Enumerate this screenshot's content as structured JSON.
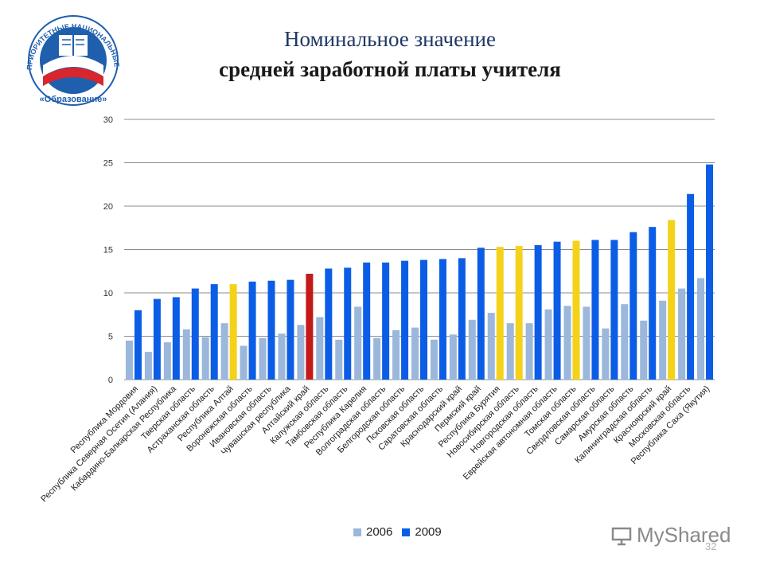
{
  "header": {
    "title_line1": "Номинальное значение",
    "title_line2": "средней заработной платы учителя"
  },
  "logo": {
    "ring_text": "ПРИОРИТЕТНЫЕ НАЦИОНАЛЬНЫЕ ПРОЕКТЫ",
    "bottom_text": "«Образование»",
    "colors": {
      "ring": "#1f5fae",
      "red": "#d8262c",
      "white": "#ffffff"
    }
  },
  "colors": {
    "series_2006": "#9bb7db",
    "series_2009": "#0b5de6",
    "highlight_yellow": "#f5d21a",
    "highlight_red": "#c41a1a"
  },
  "chart_data": {
    "type": "bar",
    "title": "Номинальное значение средней заработной платы учителя",
    "xlabel": "",
    "ylabel": "",
    "ylim": [
      0,
      30
    ],
    "yticks": [
      0,
      5,
      10,
      15,
      20,
      25,
      30
    ],
    "grid": true,
    "legend_position": "bottom",
    "categories": [
      "Республика Мордовия",
      "Республика Северная Осетия (Алания)",
      "Кабардино-Балкарская Республика",
      "Тверская область",
      "Астраханская область",
      "Республика Алтай",
      "Воронежская область",
      "Ивановская область",
      "Чувашская республика",
      "Алтайский край",
      "Калужская область",
      "Тамбовская область",
      "Республика Карелия",
      "Волгоградская область",
      "Белгородская область",
      "Псковская область",
      "Саратовская область",
      "Краснодарский край",
      "Пермский край",
      "Республика Бурятия",
      "Новосибирская область",
      "Новгородская область",
      "Еврейская автономная область",
      "Томская область",
      "Свердловская область",
      "Самарская область",
      "Амурская область",
      "Калининградская область",
      "Красноярский край",
      "Московская область",
      "Республика Саха (Якутия)"
    ],
    "series": [
      {
        "name": "2006",
        "values": [
          4.5,
          3.2,
          4.3,
          5.8,
          4.9,
          6.5,
          3.9,
          4.8,
          5.3,
          6.3,
          7.2,
          4.6,
          8.4,
          4.8,
          5.7,
          6.0,
          4.6,
          5.2,
          6.9,
          7.7,
          6.5,
          6.5,
          8.1,
          8.5,
          8.4,
          5.9,
          8.7,
          6.8,
          9.1,
          10.5,
          11.7
        ]
      },
      {
        "name": "2009",
        "values": [
          8.0,
          9.3,
          9.5,
          10.5,
          11.0,
          11.0,
          11.3,
          11.4,
          11.5,
          12.2,
          12.8,
          12.9,
          13.5,
          13.5,
          13.7,
          13.8,
          13.9,
          14.0,
          15.2,
          15.3,
          15.4,
          15.5,
          15.9,
          16.0,
          16.1,
          16.1,
          17.0,
          17.6,
          18.4,
          21.4,
          24.8
        ]
      }
    ],
    "highlight_2009": {
      "5": "yellow",
      "9": "red",
      "19": "yellow",
      "20": "yellow",
      "23": "yellow",
      "28": "yellow"
    }
  },
  "legend": {
    "label_2006": "2006",
    "label_2009": "2009"
  },
  "footer": {
    "watermark": "MyShared",
    "page_number": "32"
  }
}
